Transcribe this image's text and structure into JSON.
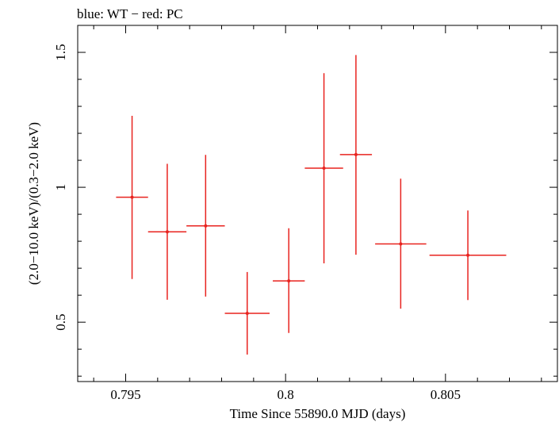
{
  "header": {
    "caption": "blue: WT − red: PC"
  },
  "chart_data": {
    "type": "scatter",
    "title": "",
    "xlabel": "Time Since 55890.0 MJD (days)",
    "ylabel": "(2.0−10.0 keV)/(0.3−2.0 keV)",
    "xlim": [
      0.7935,
      0.8085
    ],
    "ylim": [
      0.28,
      1.6
    ],
    "x_ticks": [
      {
        "value": 0.795,
        "label": "0.795"
      },
      {
        "value": 0.8,
        "label": "0.8"
      },
      {
        "value": 0.805,
        "label": "0.805"
      }
    ],
    "y_ticks": [
      {
        "value": 0.5,
        "label": "0.5"
      },
      {
        "value": 1.0,
        "label": "1"
      },
      {
        "value": 1.5,
        "label": "1.5"
      }
    ],
    "grid": false,
    "series": [
      {
        "color": "#e8231f",
        "points": [
          {
            "x": 0.7952,
            "y": 0.963,
            "xerr": 0.0005,
            "ylo": 0.66,
            "yhi": 1.265
          },
          {
            "x": 0.7963,
            "y": 0.835,
            "xerr": 0.0006,
            "ylo": 0.583,
            "yhi": 1.087
          },
          {
            "x": 0.7975,
            "y": 0.857,
            "xerr": 0.0006,
            "ylo": 0.595,
            "yhi": 1.12
          },
          {
            "x": 0.7988,
            "y": 0.533,
            "xerr": 0.0007,
            "ylo": 0.38,
            "yhi": 0.686
          },
          {
            "x": 0.8001,
            "y": 0.653,
            "xerr": 0.0005,
            "ylo": 0.46,
            "yhi": 0.848
          },
          {
            "x": 0.8012,
            "y": 1.071,
            "xerr": 0.0006,
            "ylo": 0.718,
            "yhi": 1.423
          },
          {
            "x": 0.8022,
            "y": 1.121,
            "xerr": 0.0005,
            "ylo": 0.75,
            "yhi": 1.49
          },
          {
            "x": 0.8036,
            "y": 0.79,
            "xerr": 0.0008,
            "ylo": 0.55,
            "yhi": 1.032
          },
          {
            "x": 0.8057,
            "y": 0.748,
            "xerr": 0.0012,
            "ylo": 0.582,
            "yhi": 0.914
          }
        ]
      }
    ]
  }
}
